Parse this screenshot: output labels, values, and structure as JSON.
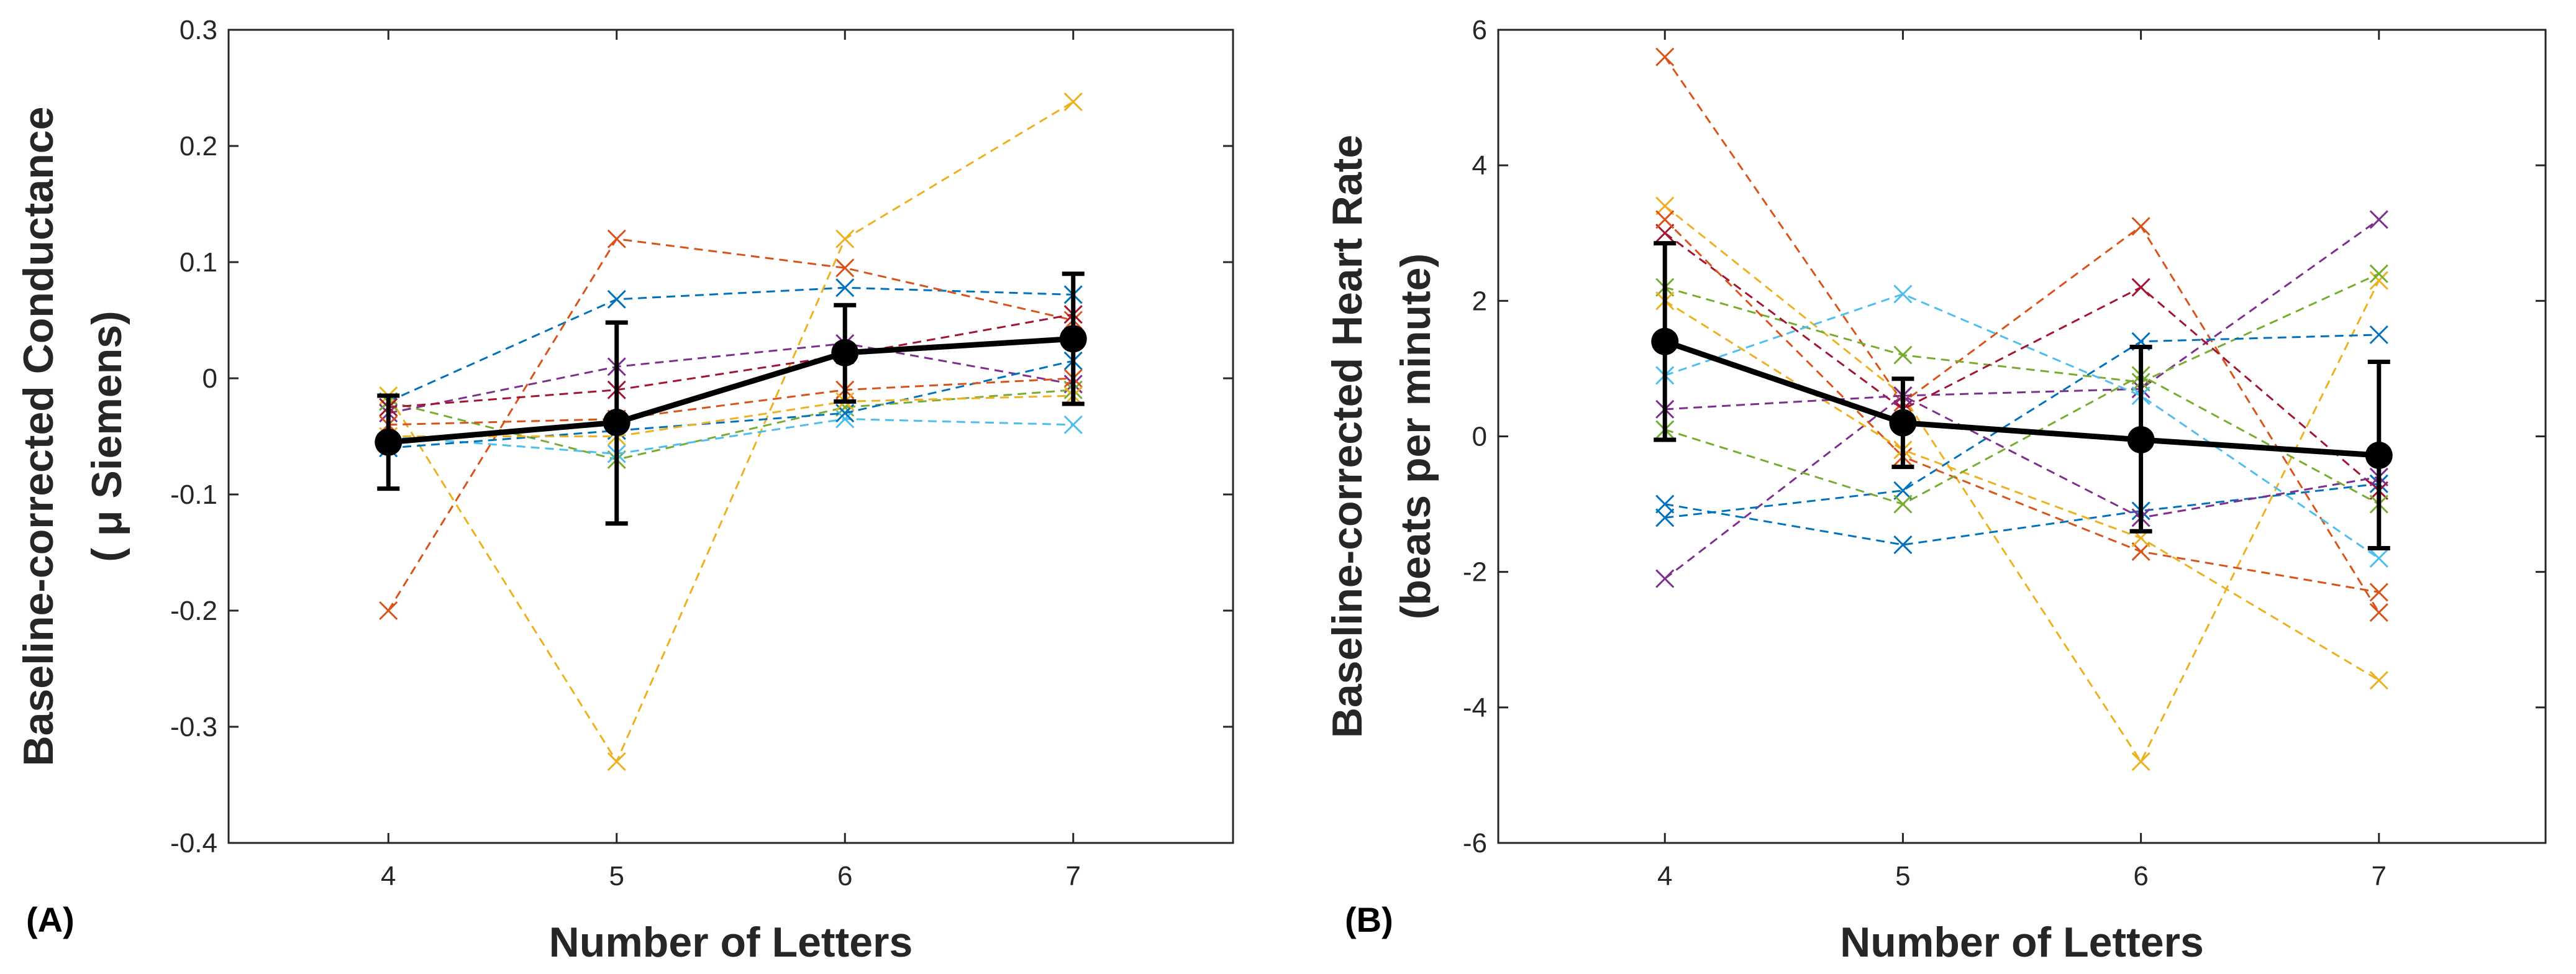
{
  "chart_data": [
    {
      "type": "line",
      "panel_label": "(A)",
      "xlabel": "Number of Letters",
      "ylabel_lines": [
        "Baseline-corrected Conductance",
        "( μ Siemens)"
      ],
      "x": [
        4,
        5,
        6,
        7
      ],
      "xlim": [
        3.3,
        7.7
      ],
      "ylim": [
        -0.4,
        0.3
      ],
      "xticks": [
        "4",
        "5",
        "6",
        "7"
      ],
      "yticks": [
        "-0.4",
        "-0.3",
        "-0.2",
        "-0.1",
        "0",
        "0.1",
        "0.2",
        "0.3"
      ],
      "ytick_values": [
        -0.4,
        -0.3,
        -0.2,
        -0.1,
        0,
        0.1,
        0.2,
        0.3
      ],
      "participants": [
        {
          "color": "#0072BD",
          "values": [
            -0.02,
            0.068,
            0.078,
            0.072
          ]
        },
        {
          "color": "#D95319",
          "values": [
            -0.2,
            0.12,
            0.095,
            0.05
          ]
        },
        {
          "color": "#EDB120",
          "values": [
            -0.015,
            -0.33,
            0.12,
            0.238
          ]
        },
        {
          "color": "#7E2F8E",
          "values": [
            -0.03,
            0.01,
            0.03,
            -0.005
          ]
        },
        {
          "color": "#77AC30",
          "values": [
            -0.02,
            -0.07,
            -0.025,
            -0.01
          ]
        },
        {
          "color": "#4DBEEE",
          "values": [
            -0.05,
            -0.065,
            -0.035,
            -0.04
          ]
        },
        {
          "color": "#A2142F",
          "values": [
            -0.025,
            -0.01,
            0.02,
            0.055
          ]
        },
        {
          "color": "#0072BD",
          "values": [
            -0.06,
            -0.045,
            -0.03,
            0.015
          ]
        },
        {
          "color": "#D95319",
          "values": [
            -0.04,
            -0.035,
            -0.01,
            0.0
          ]
        },
        {
          "color": "#EDB120",
          "values": [
            -0.05,
            -0.05,
            -0.02,
            -0.015
          ]
        }
      ],
      "mean": {
        "color": "#000000",
        "values": [
          -0.055,
          -0.038,
          0.022,
          0.034
        ],
        "err_low": [
          -0.095,
          -0.125,
          -0.02,
          -0.022
        ],
        "err_high": [
          -0.015,
          0.048,
          0.063,
          0.09
        ]
      }
    },
    {
      "type": "line",
      "panel_label": "(B)",
      "xlabel": "Number of Letters",
      "ylabel_lines": [
        "Baseline-corrected Heart Rate",
        "(beats per minute)"
      ],
      "x": [
        4,
        5,
        6,
        7
      ],
      "xlim": [
        3.3,
        7.7
      ],
      "ylim": [
        -6,
        6
      ],
      "xticks": [
        "4",
        "5",
        "6",
        "7"
      ],
      "yticks": [
        "-6",
        "-4",
        "-2",
        "0",
        "2",
        "4",
        "6"
      ],
      "ytick_values": [
        -6,
        -4,
        -2,
        0,
        2,
        4,
        6
      ],
      "participants": [
        {
          "color": "#0072BD",
          "values": [
            -1.0,
            -1.6,
            -1.1,
            -0.7
          ]
        },
        {
          "color": "#D95319",
          "values": [
            5.6,
            0.5,
            3.1,
            -2.6
          ]
        },
        {
          "color": "#EDB120",
          "values": [
            3.4,
            0.6,
            -4.8,
            2.3
          ]
        },
        {
          "color": "#7E2F8E",
          "values": [
            -2.1,
            0.6,
            0.7,
            3.2
          ]
        },
        {
          "color": "#77AC30",
          "values": [
            2.2,
            1.2,
            0.8,
            2.4
          ]
        },
        {
          "color": "#4DBEEE",
          "values": [
            0.9,
            2.1,
            0.6,
            -1.8
          ]
        },
        {
          "color": "#A2142F",
          "values": [
            3.0,
            0.4,
            2.2,
            -0.8
          ]
        },
        {
          "color": "#0072BD",
          "values": [
            -1.2,
            -0.8,
            1.4,
            1.5
          ]
        },
        {
          "color": "#D95319",
          "values": [
            3.2,
            -0.3,
            -1.7,
            -2.3
          ]
        },
        {
          "color": "#EDB120",
          "values": [
            2.0,
            -0.2,
            -1.5,
            -3.6
          ]
        },
        {
          "color": "#7E2F8E",
          "values": [
            0.4,
            0.6,
            -1.2,
            -0.6
          ]
        },
        {
          "color": "#77AC30",
          "values": [
            0.1,
            -1.0,
            0.9,
            -1.0
          ]
        }
      ],
      "mean": {
        "color": "#000000",
        "values": [
          1.4,
          0.2,
          -0.05,
          -0.28
        ],
        "err_low": [
          -0.05,
          -0.45,
          -1.4,
          -1.65
        ],
        "err_high": [
          2.85,
          0.85,
          1.32,
          1.1
        ]
      }
    }
  ]
}
